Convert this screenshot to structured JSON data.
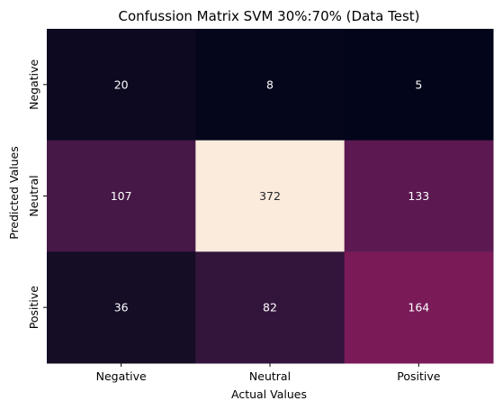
{
  "chart_data": {
    "type": "heatmap",
    "title": "Confussion Matrix SVM 30%:70% (Data Test)",
    "xlabel": "Actual Values",
    "ylabel": "Predicted Values",
    "x_categories": [
      "Negative",
      "Neutral",
      "Positive"
    ],
    "y_categories": [
      "Negative",
      "Neutral",
      "Positive"
    ],
    "values": [
      [
        20,
        8,
        5
      ],
      [
        107,
        372,
        133
      ],
      [
        36,
        82,
        164
      ]
    ],
    "colormap": "rocket",
    "colorbar": false,
    "annotations": true
  }
}
